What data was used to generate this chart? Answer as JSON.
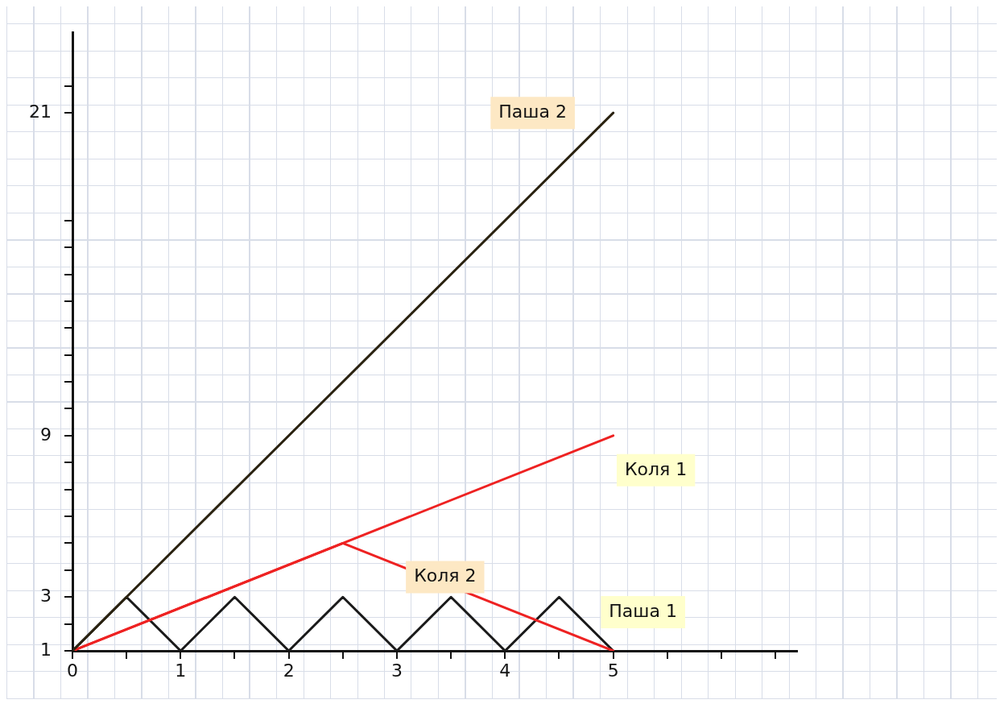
{
  "chart_data": {
    "type": "line",
    "series": [
      {
        "name": "Паша 2",
        "color": "#2a2210",
        "x": [
          0,
          5
        ],
        "values": [
          1,
          21
        ]
      },
      {
        "name": "Коля 1",
        "color": "#ee2222",
        "x": [
          0,
          5
        ],
        "values": [
          1,
          9
        ]
      },
      {
        "name": "Коля 2",
        "color": "#ee2222",
        "x": [
          0,
          2.5,
          5
        ],
        "values": [
          1,
          5,
          1
        ]
      },
      {
        "name": "Паша 1",
        "color": "#1a1a1a",
        "x": [
          0,
          0.5,
          1,
          1.5,
          2,
          2.5,
          3,
          3.5,
          4,
          4.5,
          5
        ],
        "values": [
          1,
          3,
          1,
          3,
          1,
          3,
          1,
          3,
          1,
          3,
          1
        ]
      }
    ],
    "xlim": [
      0,
      6.7
    ],
    "xticks": [
      0,
      {
        "value": 0.5,
        "label": null
      },
      1,
      {
        "value": 1.5,
        "label": null
      },
      2,
      {
        "value": 2.5,
        "label": null
      },
      3,
      {
        "value": 3.5,
        "label": null
      },
      4,
      {
        "value": 4.5,
        "label": null
      },
      5,
      {
        "value": 5.5,
        "label": null
      },
      {
        "value": 6,
        "label": null
      },
      {
        "value": 6.5,
        "label": null
      }
    ],
    "ylim": [
      1,
      24
    ],
    "yticks": [
      1,
      {
        "value": 2,
        "label": null
      },
      3,
      {
        "value": 4,
        "label": null
      },
      {
        "value": 5,
        "label": null
      },
      {
        "value": 6,
        "label": null
      },
      {
        "value": 7,
        "label": null
      },
      {
        "value": 8,
        "label": null
      },
      9,
      {
        "value": 10,
        "label": null
      },
      {
        "value": 11,
        "label": null
      },
      {
        "value": 12,
        "label": null
      },
      {
        "value": 13,
        "label": null
      },
      {
        "value": 14,
        "label": null
      },
      {
        "value": 15,
        "label": null
      },
      {
        "value": 16,
        "label": null
      },
      {
        "value": 17,
        "label": null
      },
      21,
      {
        "value": 22,
        "label": null
      }
    ],
    "grid": false,
    "legend": false,
    "marker": "none",
    "line_style": "solid"
  }
}
